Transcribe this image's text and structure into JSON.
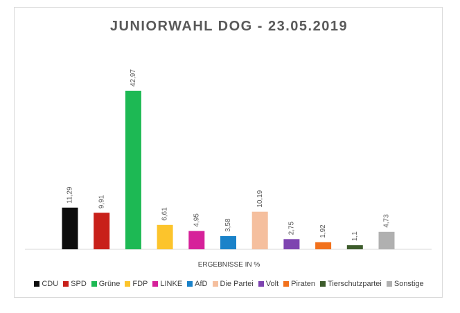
{
  "chart_data": {
    "type": "bar",
    "title": "JUNIORWAHL DOG - 23.05.2019",
    "xlabel": "ERGEBNISSE IN %",
    "ylabel": "",
    "ylim": [
      0,
      50
    ],
    "grid": false,
    "legend_position": "bottom",
    "categories": [
      "CDU",
      "SPD",
      "Grüne",
      "FDP",
      "LINKE",
      "AfD",
      "Die Partei",
      "Volt",
      "Piraten",
      "Tierschutzpartei",
      "Sonstige"
    ],
    "values": [
      11.29,
      9.91,
      42.97,
      6.61,
      4.95,
      3.58,
      10.19,
      2.75,
      1.92,
      1.1,
      4.73
    ],
    "value_labels": [
      "11,29",
      "9,91",
      "42,97",
      "6,61",
      "4,95",
      "3,58",
      "10,19",
      "2,75",
      "1,92",
      "1,1",
      "4,73"
    ],
    "colors": [
      "#0d0d0d",
      "#c8201a",
      "#1db954",
      "#fcc42c",
      "#d6219a",
      "#1a82c9",
      "#f5bf9e",
      "#7e44b0",
      "#f2711c",
      "#3d5c2b",
      "#b0b0b0"
    ]
  }
}
